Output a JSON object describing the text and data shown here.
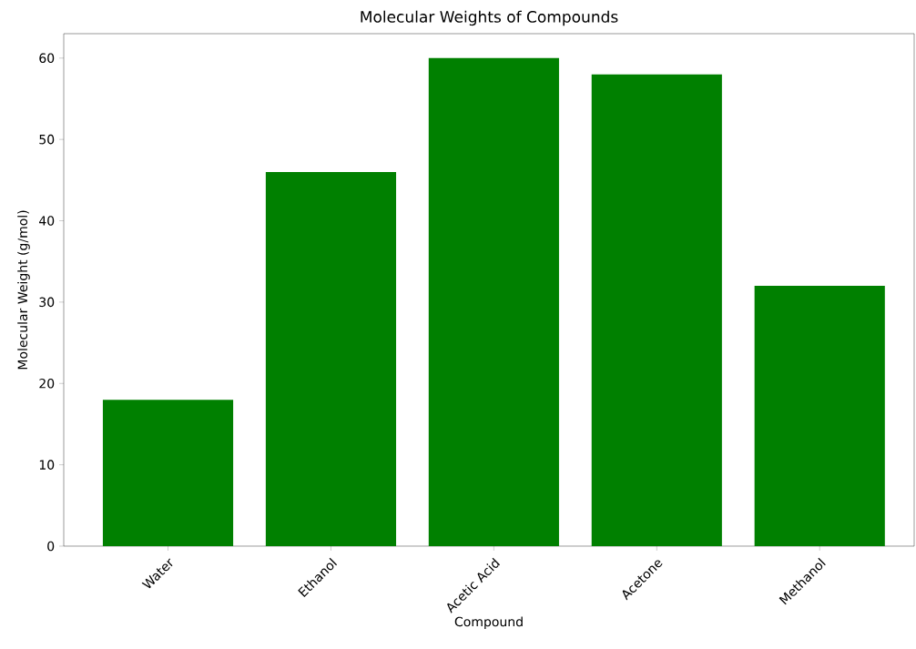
{
  "chart_data": {
    "type": "bar",
    "title": "Molecular Weights of Compounds",
    "xlabel": "Compound",
    "ylabel": "Molecular Weight (g/mol)",
    "categories": [
      "Water",
      "Ethanol",
      "Acetic Acid",
      "Acetone",
      "Methanol"
    ],
    "values": [
      18,
      46,
      60,
      58,
      32
    ],
    "color": "#008000",
    "ylim": [
      0,
      63
    ],
    "yticks": [
      0,
      10,
      20,
      30,
      40,
      50,
      60
    ],
    "grid": false
  }
}
